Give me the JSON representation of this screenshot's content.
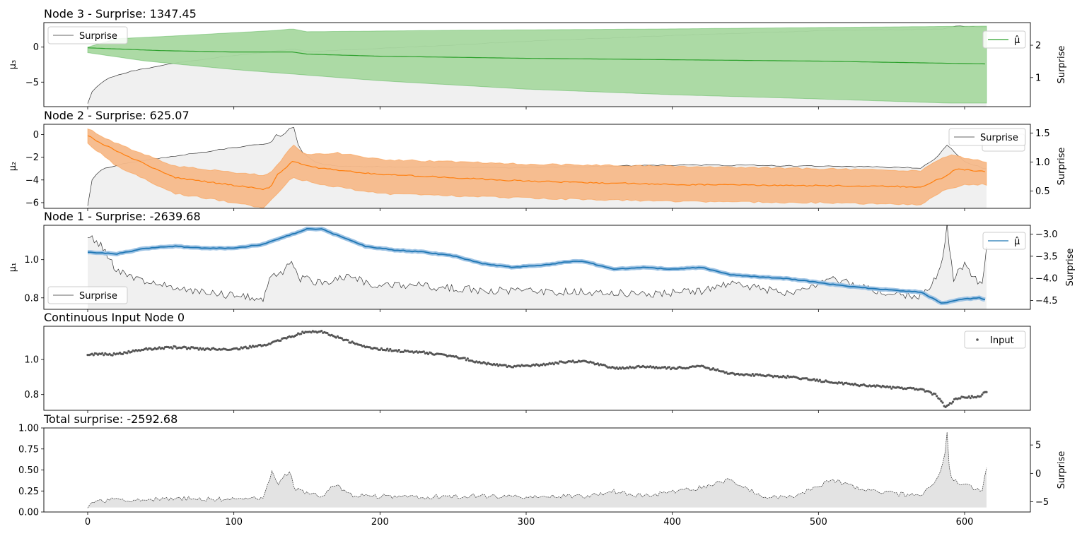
{
  "chart_data": [
    {
      "type": "line",
      "title": "Node 3 - Surprise: 1347.45",
      "ylabel": "μ₃",
      "ylabel_right": "Surprise",
      "xlim": [
        -30,
        645
      ],
      "ylim": [
        -8.5,
        3.5
      ],
      "yticks": [
        0,
        -5
      ],
      "ylim_right": [
        0.1,
        2.7
      ],
      "yticks_right": [
        1,
        2
      ],
      "legend_left": "Surprise",
      "legend_right": "μ̂",
      "color": "#2ca02c",
      "fill_color": "#a8d8a0",
      "band_upper": [
        [
          0,
          0
        ],
        [
          20,
          1.2
        ],
        [
          60,
          1.6
        ],
        [
          130,
          2.4
        ],
        [
          140,
          2.6
        ],
        [
          150,
          2.2
        ],
        [
          250,
          2.4
        ],
        [
          400,
          2.6
        ],
        [
          500,
          2.8
        ],
        [
          615,
          3.0
        ]
      ],
      "band_lower": [
        [
          0,
          -0.8
        ],
        [
          40,
          -2.0
        ],
        [
          100,
          -3.2
        ],
        [
          200,
          -4.8
        ],
        [
          300,
          -6.0
        ],
        [
          400,
          -6.8
        ],
        [
          500,
          -7.4
        ],
        [
          590,
          -8.0
        ],
        [
          615,
          -8.0
        ]
      ],
      "mean": [
        [
          0,
          -0.1
        ],
        [
          50,
          -0.5
        ],
        [
          100,
          -0.7
        ],
        [
          140,
          -0.7
        ],
        [
          150,
          -1.0
        ],
        [
          200,
          -1.3
        ],
        [
          300,
          -1.6
        ],
        [
          400,
          -1.8
        ],
        [
          500,
          -2.0
        ],
        [
          615,
          -2.4
        ]
      ],
      "surprise": [
        [
          0,
          0.2
        ],
        [
          3,
          0.55
        ],
        [
          8,
          0.8
        ],
        [
          15,
          1.0
        ],
        [
          30,
          1.2
        ],
        [
          60,
          1.45
        ],
        [
          100,
          1.68
        ],
        [
          135,
          1.85
        ],
        [
          140,
          1.88
        ],
        [
          150,
          1.8
        ],
        [
          200,
          1.9
        ],
        [
          300,
          2.12
        ],
        [
          400,
          2.3
        ],
        [
          500,
          2.45
        ],
        [
          585,
          2.5
        ],
        [
          595,
          2.6
        ],
        [
          615,
          2.55
        ]
      ]
    },
    {
      "type": "line",
      "title": "Node 2 - Surprise: 625.07",
      "ylabel": "μ₂",
      "ylabel_right": "Surprise",
      "xlim": [
        -30,
        645
      ],
      "ylim": [
        -6.5,
        0.9
      ],
      "yticks": [
        0,
        -2,
        -4,
        -6
      ],
      "ylim_right": [
        0.2,
        1.65
      ],
      "yticks_right": [
        0.5,
        1.0,
        1.5
      ],
      "legend_right": "Surprise",
      "color": "#ff7f0e",
      "fill_color": "#f5b98a",
      "band_upper": [
        [
          0,
          0.5
        ],
        [
          20,
          -0.8
        ],
        [
          60,
          -2.8
        ],
        [
          120,
          -3.6
        ],
        [
          125,
          -3.4
        ],
        [
          135,
          -1.8
        ],
        [
          140,
          -0.9
        ],
        [
          150,
          -1.8
        ],
        [
          170,
          -1.6
        ],
        [
          200,
          -2.2
        ],
        [
          300,
          -2.6
        ],
        [
          400,
          -2.8
        ],
        [
          500,
          -3.0
        ],
        [
          570,
          -3.2
        ],
        [
          580,
          -2.4
        ],
        [
          590,
          -1.8
        ],
        [
          615,
          -2.4
        ]
      ],
      "band_lower": [
        [
          0,
          -0.8
        ],
        [
          20,
          -2.8
        ],
        [
          60,
          -5.2
        ],
        [
          100,
          -6.0
        ],
        [
          120,
          -6.5
        ],
        [
          130,
          -5.2
        ],
        [
          140,
          -3.8
        ],
        [
          160,
          -4.4
        ],
        [
          200,
          -5.2
        ],
        [
          300,
          -5.6
        ],
        [
          400,
          -5.9
        ],
        [
          500,
          -6.0
        ],
        [
          570,
          -6.2
        ],
        [
          585,
          -5.0
        ],
        [
          600,
          -4.4
        ],
        [
          615,
          -4.4
        ]
      ],
      "mean": [
        [
          0,
          -0.1
        ],
        [
          20,
          -1.5
        ],
        [
          60,
          -3.8
        ],
        [
          120,
          -4.8
        ],
        [
          125,
          -4.7
        ],
        [
          130,
          -3.5
        ],
        [
          140,
          -2.4
        ],
        [
          160,
          -3.0
        ],
        [
          200,
          -3.5
        ],
        [
          300,
          -4.1
        ],
        [
          400,
          -4.4
        ],
        [
          500,
          -4.5
        ],
        [
          570,
          -4.6
        ],
        [
          585,
          -3.8
        ],
        [
          595,
          -3.0
        ],
        [
          615,
          -3.3
        ]
      ],
      "surprise": [
        [
          0,
          0.25
        ],
        [
          3,
          0.7
        ],
        [
          10,
          0.88
        ],
        [
          30,
          1.0
        ],
        [
          60,
          1.1
        ],
        [
          100,
          1.25
        ],
        [
          125,
          1.32
        ],
        [
          130,
          1.5
        ],
        [
          133,
          1.42
        ],
        [
          138,
          1.58
        ],
        [
          141,
          1.6
        ],
        [
          145,
          1.2
        ],
        [
          155,
          1.0
        ],
        [
          170,
          0.92
        ],
        [
          200,
          0.92
        ],
        [
          300,
          0.9
        ],
        [
          400,
          0.95
        ],
        [
          500,
          0.93
        ],
        [
          570,
          0.9
        ],
        [
          582,
          1.1
        ],
        [
          588,
          1.3
        ],
        [
          600,
          1.0
        ],
        [
          615,
          0.88
        ]
      ]
    },
    {
      "type": "line",
      "title": "Node 1 - Surprise: -2639.68",
      "ylabel": "μ₁",
      "ylabel_right": "Surprise",
      "xlim": [
        -30,
        645
      ],
      "ylim": [
        0.74,
        1.18
      ],
      "yticks": [
        1.0,
        0.8
      ],
      "ylim_right": [
        -4.7,
        -2.8
      ],
      "yticks_right": [
        -3.0,
        -3.5,
        -4.0,
        -4.5
      ],
      "legend_left": "Surprise",
      "legend_right": "μ̂",
      "color": "#1f77b4",
      "fill_color": "#9ec3e4",
      "mean": [
        [
          0,
          1.04
        ],
        [
          20,
          1.03
        ],
        [
          40,
          1.06
        ],
        [
          60,
          1.07
        ],
        [
          80,
          1.06
        ],
        [
          100,
          1.06
        ],
        [
          120,
          1.08
        ],
        [
          135,
          1.12
        ],
        [
          150,
          1.16
        ],
        [
          160,
          1.16
        ],
        [
          170,
          1.13
        ],
        [
          190,
          1.07
        ],
        [
          210,
          1.05
        ],
        [
          230,
          1.04
        ],
        [
          250,
          1.02
        ],
        [
          270,
          0.98
        ],
        [
          290,
          0.96
        ],
        [
          310,
          0.97
        ],
        [
          330,
          0.99
        ],
        [
          340,
          0.99
        ],
        [
          360,
          0.95
        ],
        [
          380,
          0.96
        ],
        [
          400,
          0.95
        ],
        [
          420,
          0.96
        ],
        [
          440,
          0.92
        ],
        [
          460,
          0.91
        ],
        [
          480,
          0.9
        ],
        [
          500,
          0.88
        ],
        [
          520,
          0.86
        ],
        [
          550,
          0.84
        ],
        [
          570,
          0.83
        ],
        [
          585,
          0.77
        ],
        [
          595,
          0.79
        ],
        [
          610,
          0.8
        ],
        [
          615,
          0.79
        ]
      ],
      "surprise": [
        [
          0,
          -3.0
        ],
        [
          10,
          -3.3
        ],
        [
          15,
          -3.6
        ],
        [
          20,
          -3.8
        ],
        [
          40,
          -4.1
        ],
        [
          80,
          -4.3
        ],
        [
          100,
          -4.4
        ],
        [
          120,
          -4.45
        ],
        [
          125,
          -4.0
        ],
        [
          135,
          -3.8
        ],
        [
          140,
          -3.6
        ],
        [
          145,
          -4.0
        ],
        [
          160,
          -4.1
        ],
        [
          180,
          -3.95
        ],
        [
          200,
          -4.2
        ],
        [
          220,
          -4.15
        ],
        [
          260,
          -4.25
        ],
        [
          300,
          -4.3
        ],
        [
          340,
          -4.3
        ],
        [
          380,
          -4.35
        ],
        [
          420,
          -4.3
        ],
        [
          440,
          -4.1
        ],
        [
          480,
          -4.35
        ],
        [
          510,
          -4.0
        ],
        [
          540,
          -4.3
        ],
        [
          570,
          -4.4
        ],
        [
          580,
          -4.0
        ],
        [
          585,
          -3.6
        ],
        [
          588,
          -2.8
        ],
        [
          592,
          -4.0
        ],
        [
          600,
          -3.7
        ],
        [
          612,
          -4.2
        ],
        [
          615,
          -3.3
        ]
      ]
    },
    {
      "type": "scatter",
      "title": "Continuous Input Node 0",
      "xlim": [
        -30,
        645
      ],
      "ylim": [
        0.71,
        1.19
      ],
      "yticks": [
        1.0,
        0.8
      ],
      "legend_right": "Input",
      "color": "#555555",
      "points": [
        [
          0,
          1.03
        ],
        [
          20,
          1.03
        ],
        [
          40,
          1.06
        ],
        [
          60,
          1.07
        ],
        [
          80,
          1.06
        ],
        [
          100,
          1.06
        ],
        [
          120,
          1.08
        ],
        [
          135,
          1.12
        ],
        [
          150,
          1.16
        ],
        [
          160,
          1.16
        ],
        [
          170,
          1.13
        ],
        [
          190,
          1.07
        ],
        [
          210,
          1.05
        ],
        [
          230,
          1.04
        ],
        [
          250,
          1.02
        ],
        [
          270,
          0.98
        ],
        [
          290,
          0.96
        ],
        [
          310,
          0.97
        ],
        [
          330,
          0.99
        ],
        [
          340,
          0.99
        ],
        [
          360,
          0.95
        ],
        [
          380,
          0.96
        ],
        [
          400,
          0.95
        ],
        [
          420,
          0.96
        ],
        [
          440,
          0.92
        ],
        [
          460,
          0.91
        ],
        [
          480,
          0.9
        ],
        [
          500,
          0.88
        ],
        [
          520,
          0.86
        ],
        [
          550,
          0.84
        ],
        [
          570,
          0.83
        ],
        [
          580,
          0.8
        ],
        [
          587,
          0.73
        ],
        [
          595,
          0.78
        ],
        [
          610,
          0.79
        ],
        [
          615,
          0.82
        ]
      ]
    },
    {
      "type": "area",
      "title": "Total surprise: -2592.68",
      "ylabel_right": "Surprise",
      "xlim": [
        -30,
        645
      ],
      "xticks": [
        0,
        100,
        200,
        300,
        400,
        500,
        600
      ],
      "ylim": [
        0,
        1
      ],
      "yticks": [
        0.0,
        0.25,
        0.5,
        0.75,
        1.0
      ],
      "ylim_right": [
        -6.8,
        8.0
      ],
      "yticks_right": [
        5,
        0,
        -5
      ],
      "color": "#555555",
      "fill_color": "#e3e3e3",
      "baseline": -6.0,
      "surprise": [
        [
          0,
          -5.8
        ],
        [
          2,
          -5.2
        ],
        [
          10,
          -4.9
        ],
        [
          20,
          -4.6
        ],
        [
          40,
          -4.7
        ],
        [
          60,
          -4.4
        ],
        [
          80,
          -4.5
        ],
        [
          100,
          -4.6
        ],
        [
          120,
          -4.5
        ],
        [
          124,
          -1.5
        ],
        [
          126,
          0.3
        ],
        [
          130,
          -2.0
        ],
        [
          135,
          -0.5
        ],
        [
          138,
          0.2
        ],
        [
          142,
          -2.8
        ],
        [
          160,
          -4.0
        ],
        [
          170,
          -2.0
        ],
        [
          180,
          -3.8
        ],
        [
          200,
          -4.0
        ],
        [
          220,
          -4.2
        ],
        [
          260,
          -4.0
        ],
        [
          300,
          -4.1
        ],
        [
          340,
          -4.0
        ],
        [
          360,
          -3.2
        ],
        [
          380,
          -4.0
        ],
        [
          420,
          -2.5
        ],
        [
          440,
          -1.0
        ],
        [
          460,
          -4.0
        ],
        [
          480,
          -4.2
        ],
        [
          510,
          -1.2
        ],
        [
          530,
          -3.0
        ],
        [
          570,
          -4.0
        ],
        [
          580,
          -1.5
        ],
        [
          586,
          2.0
        ],
        [
          588,
          7.5
        ],
        [
          590,
          -1.0
        ],
        [
          600,
          -2.0
        ],
        [
          612,
          -3.0
        ],
        [
          615,
          1.0
        ]
      ]
    }
  ]
}
